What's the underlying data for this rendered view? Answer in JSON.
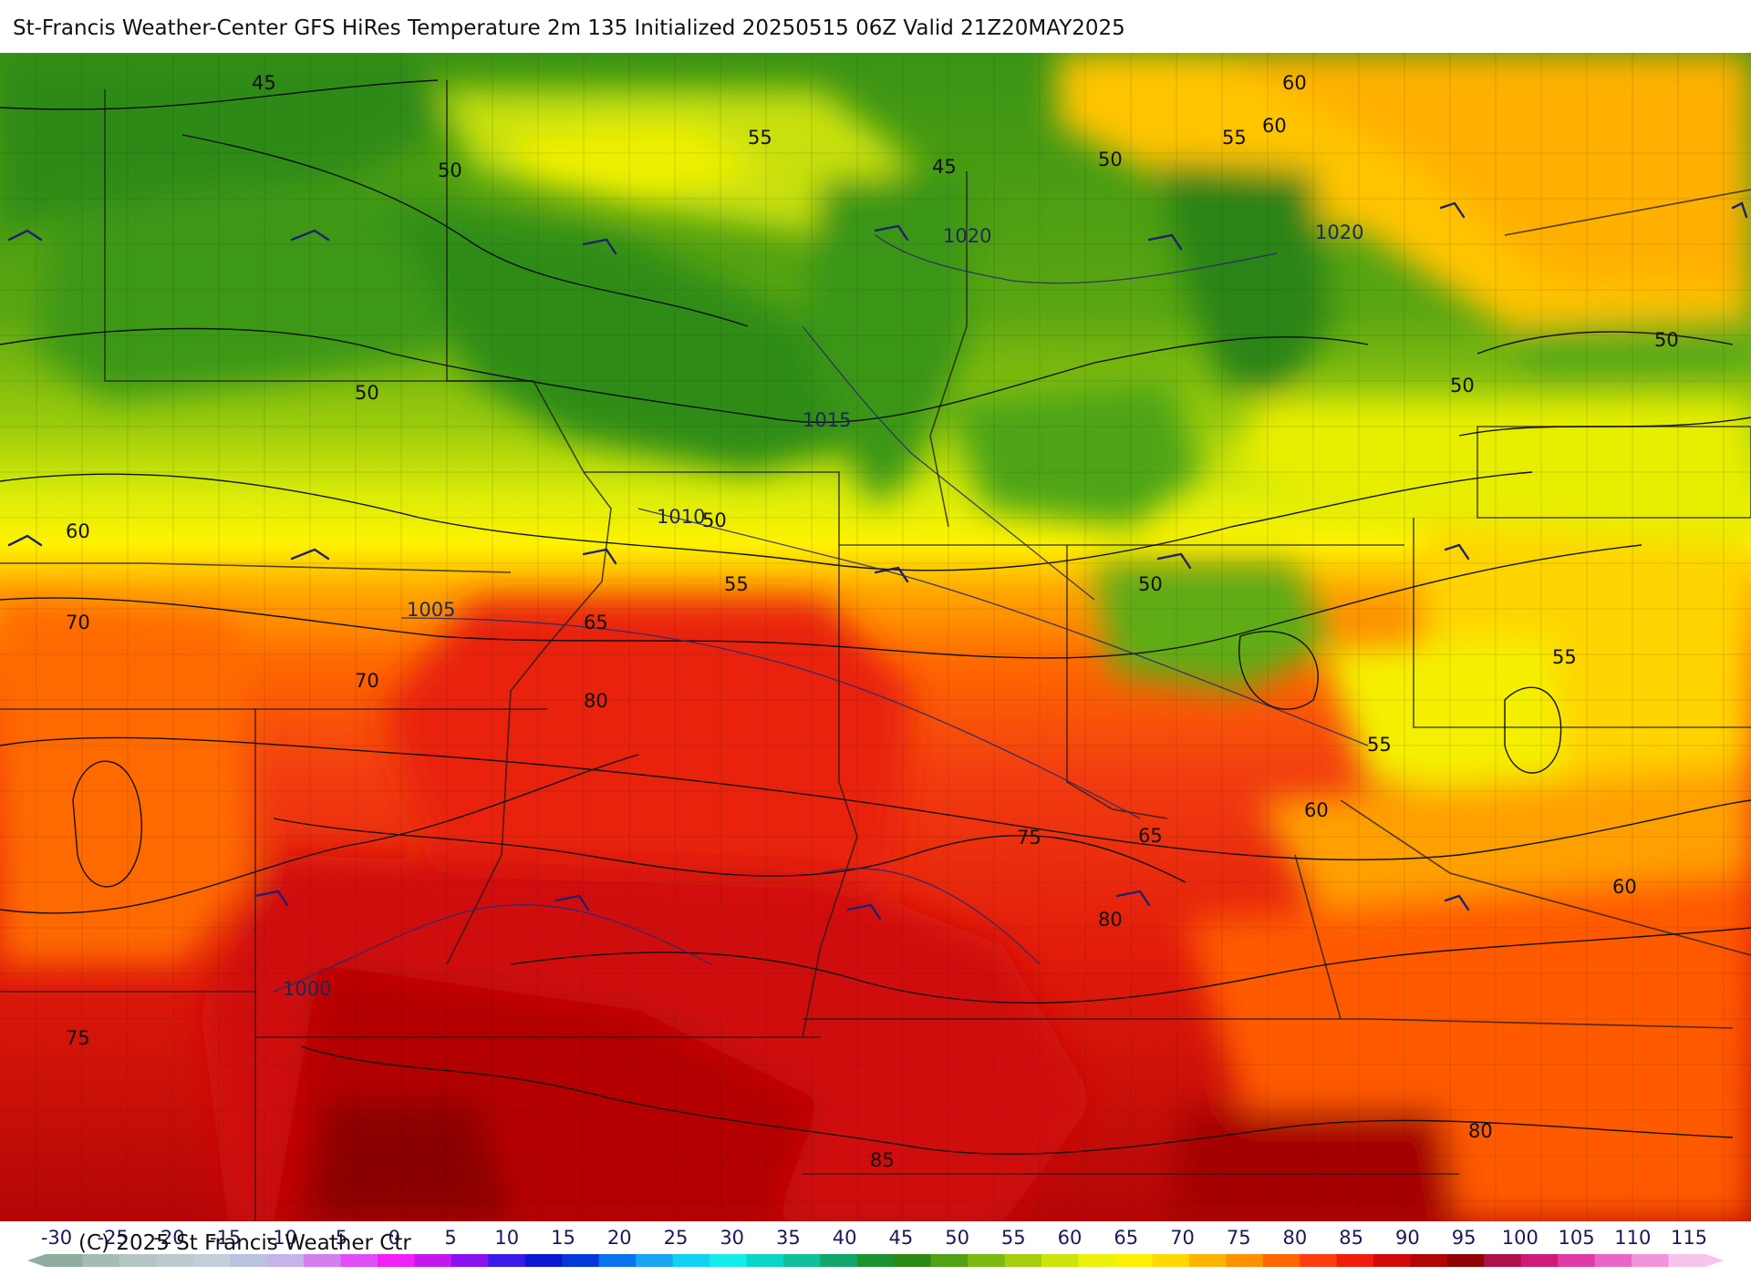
{
  "title": "St-Francis Weather-Center GFS HiRes Temperature 2m  135 Initialized 20250515 06Z Valid 21Z20MAY2025",
  "copyright": "(C) 2025 St Francis Weather Ctr",
  "colorbar": {
    "ticks": [
      "-30",
      "-25",
      "-20",
      "-15",
      "-10",
      "-5",
      "0",
      "5",
      "10",
      "15",
      "20",
      "25",
      "30",
      "35",
      "40",
      "45",
      "50",
      "55",
      "60",
      "65",
      "70",
      "75",
      "80",
      "85",
      "90",
      "95",
      "100",
      "105",
      "110",
      "115"
    ],
    "colors": [
      "#8fae9f",
      "#a4bcb6",
      "#b4c6c4",
      "#bccad0",
      "#c4cedb",
      "#b9c3e0",
      "#c6b3ea",
      "#d27ff0",
      "#df4ef7",
      "#f020f7",
      "#c616f0",
      "#8a12f0",
      "#3a1ae8",
      "#0a18d6",
      "#0538d8",
      "#0b72f0",
      "#1aa4f4",
      "#11d2f2",
      "#14ecec",
      "#0ad6c6",
      "#0fc09a",
      "#12a66a",
      "#1c9230",
      "#2d8a14",
      "#52a014",
      "#7bba10",
      "#a4cf0c",
      "#cce40a",
      "#eef20a",
      "#fdf000",
      "#ffd800",
      "#ffb400",
      "#ff9000",
      "#ff6600",
      "#ff3d10",
      "#f01c0c",
      "#d00a0a",
      "#b00606",
      "#900404",
      "#b0104a",
      "#d01a7a",
      "#e03aa8",
      "#ea66c6",
      "#f294dc",
      "#f8c4ec"
    ]
  },
  "temperature_labels": [
    "45",
    "55",
    "60",
    "60",
    "55",
    "45",
    "50",
    "50",
    "50",
    "50",
    "60",
    "70",
    "70",
    "65",
    "55",
    "50",
    "1010",
    "50",
    "55",
    "80",
    "50",
    "65",
    "75",
    "55",
    "60",
    "60",
    "80",
    "75",
    "80",
    "85"
  ],
  "isobar_labels": [
    "1020",
    "1020",
    "1015",
    "1010",
    "1005",
    "1000"
  ],
  "layers": {
    "temperature_fill": "2m temperature shading",
    "isobars": "sea level pressure contours",
    "wind_barbs": "wind barbs",
    "borders": "state and county borders"
  }
}
